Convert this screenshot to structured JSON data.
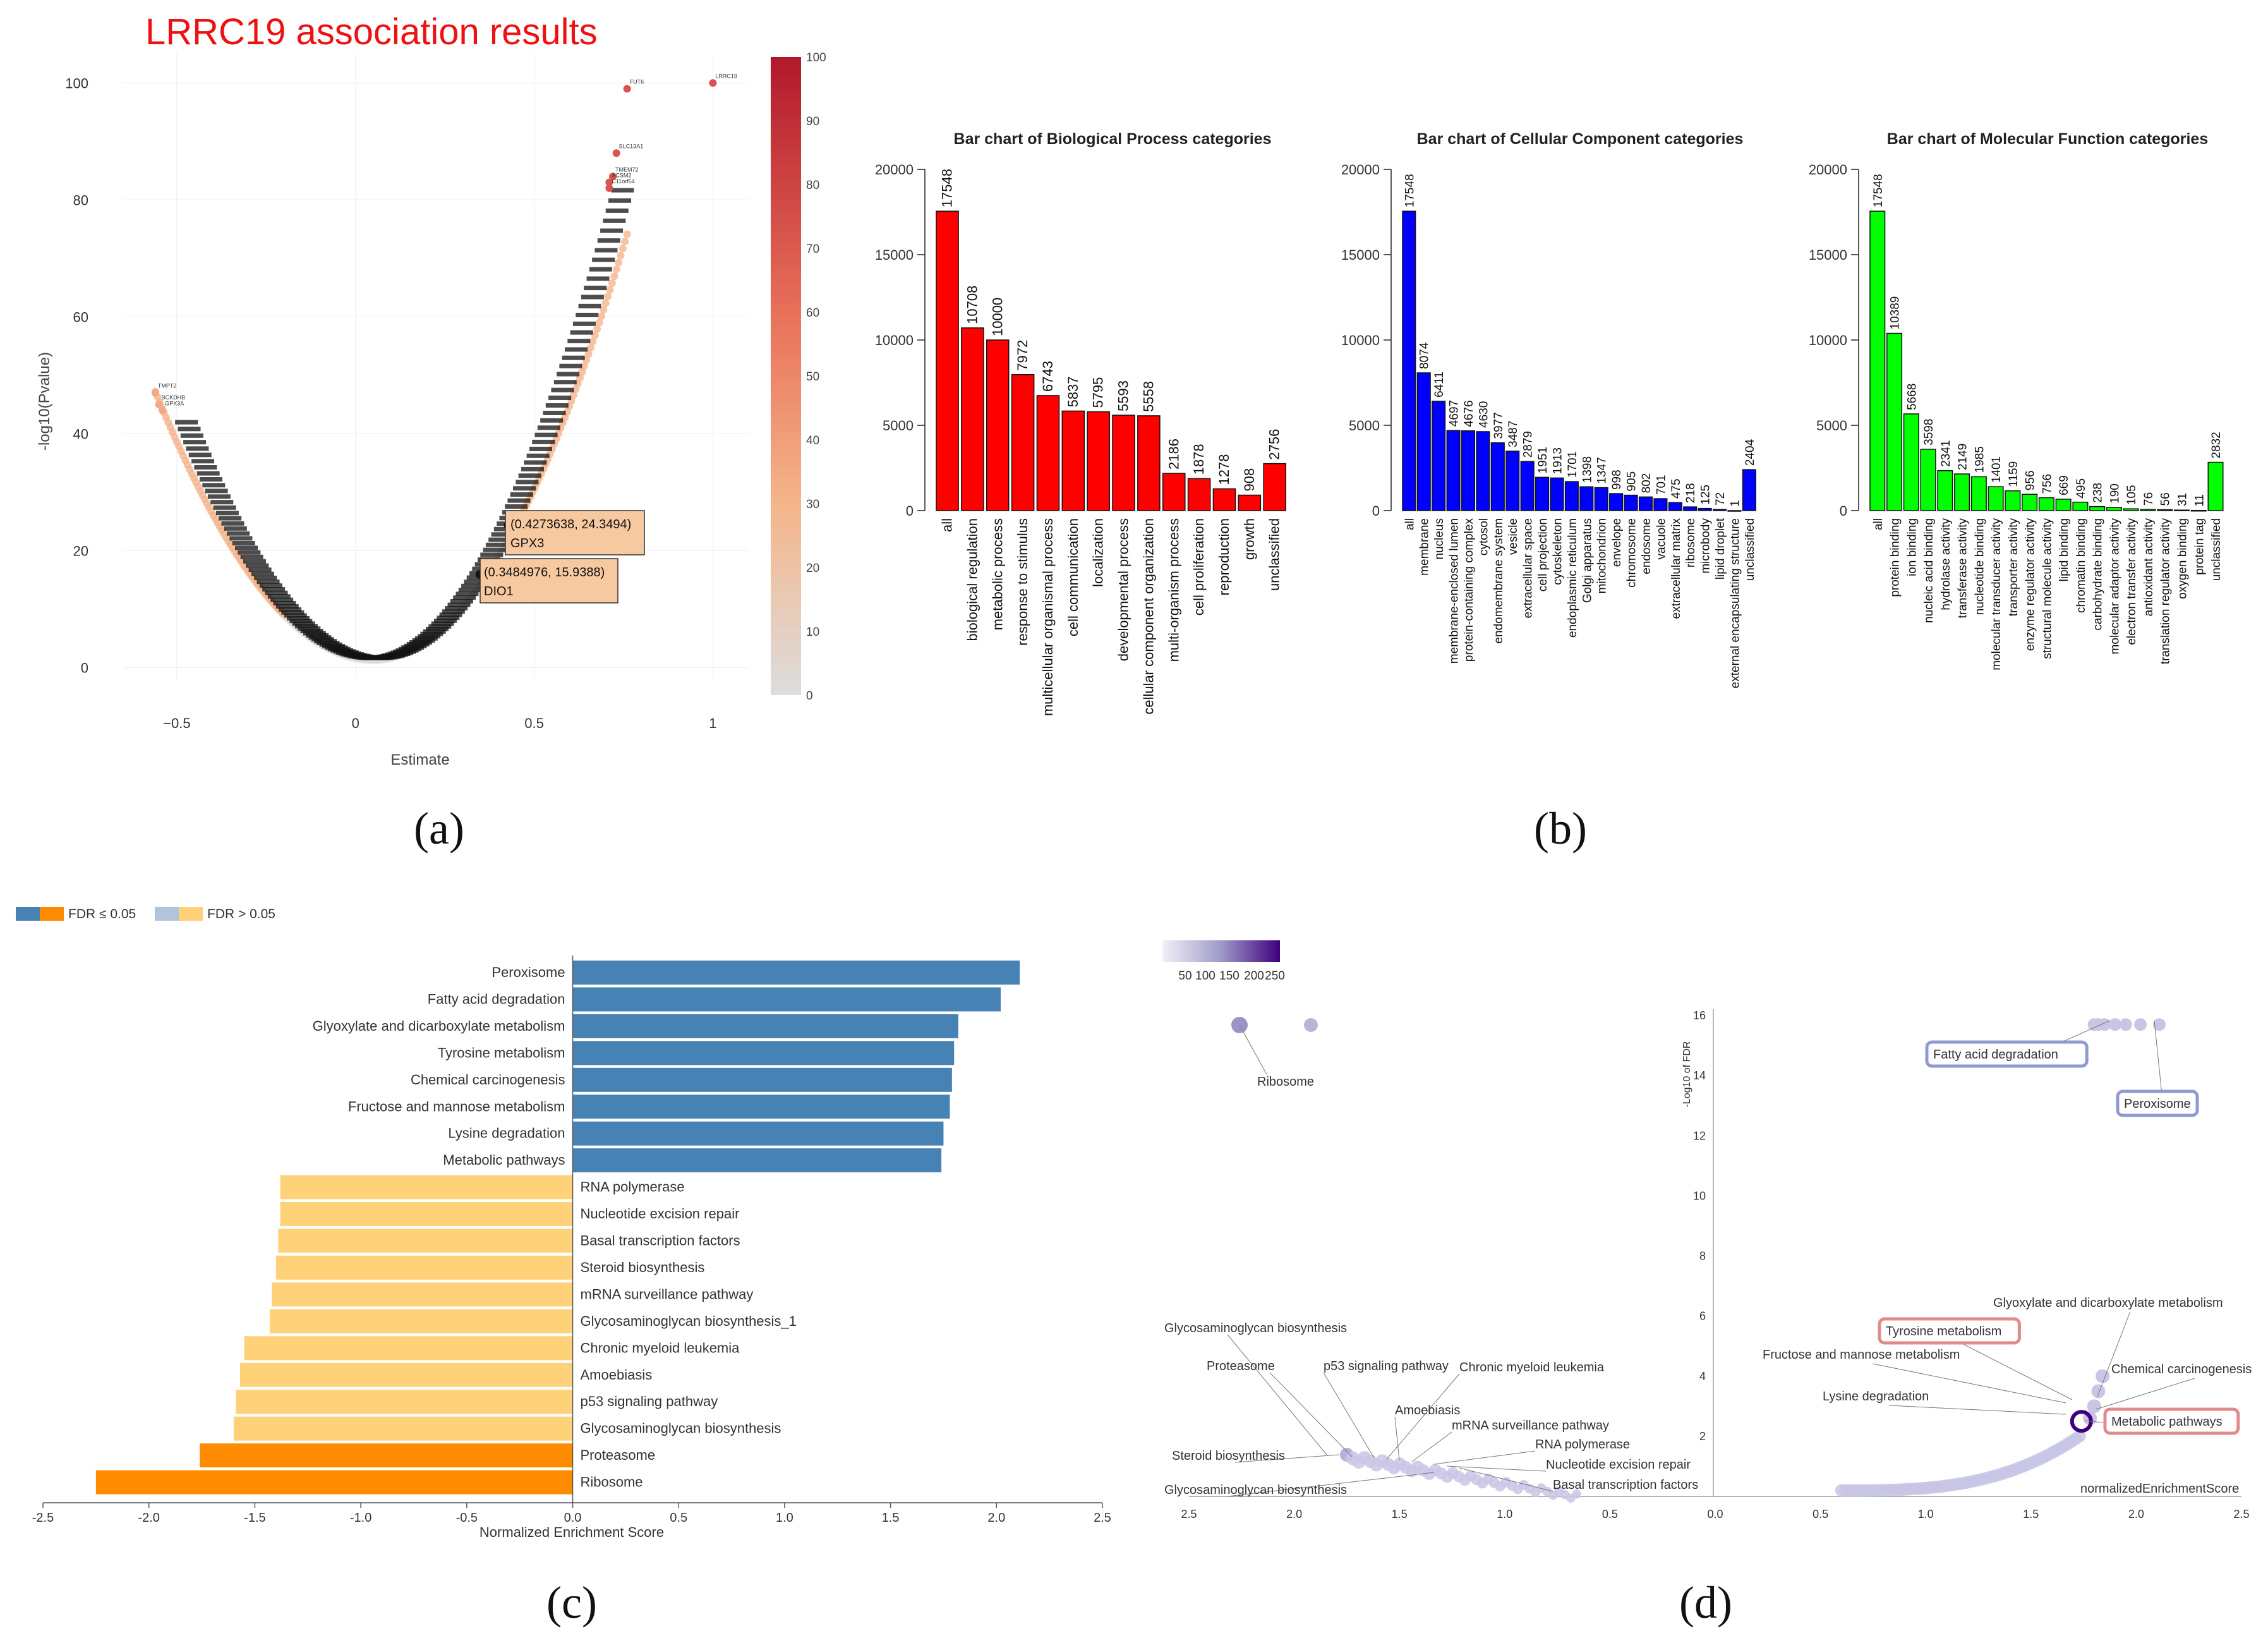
{
  "panel_labels": {
    "a": "(a)",
    "b": "(b)",
    "c": "(c)",
    "d": "(d)"
  },
  "colors": {
    "bp": "#ff0000",
    "cc": "#0000ff",
    "mf": "#00ff00",
    "fdr_sig_pos": "#4682b4",
    "fdr_sig_neg": "#ff8c00",
    "fdr_ns_pos": "#b0c4de",
    "fdr_ns_neg": "#ffd27a",
    "volcano_title": "#ee1111"
  },
  "chart_data": [
    {
      "id": "a",
      "type": "scatter",
      "title": "LRRC19 association  results",
      "xlabel": "Estimate",
      "ylabel": "-log10(Pvalue)",
      "xlim": [
        -0.65,
        1.1
      ],
      "ylim": [
        -2,
        105
      ],
      "xticks": [
        {
          "v": -0.5,
          "l": "−0.5"
        },
        {
          "v": 0,
          "l": "0"
        },
        {
          "v": 0.5,
          "l": "0.5"
        },
        {
          "v": 1,
          "l": "1"
        }
      ],
      "yticks": [
        0,
        20,
        40,
        60,
        80,
        100
      ],
      "colorbar": {
        "min": 0,
        "max": 100,
        "ticks": [
          0,
          10,
          20,
          30,
          40,
          50,
          60,
          70,
          80,
          90,
          100
        ]
      },
      "labeled_points": [
        {
          "x": 1.0,
          "y": 100,
          "label": "LRRC19"
        },
        {
          "x": 0.76,
          "y": 99,
          "label": "FUT6"
        },
        {
          "x": 0.73,
          "y": 88,
          "label": "SLC13A1"
        },
        {
          "x": 0.72,
          "y": 84,
          "label": "TMEM72"
        },
        {
          "x": 0.71,
          "y": 83,
          "label": "ACSM2"
        },
        {
          "x": 0.71,
          "y": 82,
          "label": "C11orf54"
        },
        {
          "x": -0.56,
          "y": 47,
          "label": "TMPT2"
        },
        {
          "x": -0.55,
          "y": 45,
          "label": "BCKDHB"
        },
        {
          "x": -0.54,
          "y": 44,
          "label": "GPX3A"
        }
      ],
      "callouts": [
        {
          "x": 0.4273638,
          "y": 24.3494,
          "coords": "(0.4273638, 24.3494)",
          "gene": "GPX3"
        },
        {
          "x": 0.3484976,
          "y": 15.9388,
          "coords": "(0.3484976, 15.9388)",
          "gene": "DIO1"
        }
      ]
    },
    {
      "id": "b1",
      "type": "bar",
      "title": "Bar chart of Biological Process categories",
      "ylim": [
        0,
        20000
      ],
      "yticks": [
        0,
        5000,
        10000,
        15000,
        20000
      ],
      "categories": [
        "all",
        "biological regulation",
        "metabolic process",
        "response to stimulus",
        "multicellular organismal process",
        "cell communication",
        "localization",
        "developmental process",
        "cellular component organization",
        "multi-organism process",
        "cell proliferation",
        "reproduction",
        "growth",
        "unclassified"
      ],
      "values": [
        17548,
        10708,
        10000,
        7972,
        6743,
        5837,
        5795,
        5593,
        5558,
        2186,
        1878,
        1278,
        908,
        2756
      ]
    },
    {
      "id": "b2",
      "type": "bar",
      "title": "Bar chart of Cellular Component categories",
      "ylim": [
        0,
        20000
      ],
      "yticks": [
        0,
        5000,
        10000,
        15000,
        20000
      ],
      "categories": [
        "all",
        "membrane",
        "nucleus",
        "membrane-enclosed lumen",
        "protein-containing complex",
        "cytosol",
        "endomembrane system",
        "vesicle",
        "extracellular space",
        "cell projection",
        "cytoskeleton",
        "endoplasmic reticulum",
        "Golgi apparatus",
        "mitochondrion",
        "envelope",
        "chromosome",
        "endosome",
        "vacuole",
        "extracellular matrix",
        "ribosome",
        "microbody",
        "lipid droplet",
        "external encapsulating structure",
        "unclassified"
      ],
      "values": [
        17548,
        8074,
        6411,
        4697,
        4676,
        4630,
        3977,
        3487,
        2879,
        1951,
        1913,
        1701,
        1398,
        1347,
        998,
        905,
        802,
        701,
        475,
        218,
        125,
        72,
        1,
        2404
      ]
    },
    {
      "id": "b3",
      "type": "bar",
      "title": "Bar chart of Molecular Function categories",
      "ylim": [
        0,
        20000
      ],
      "yticks": [
        0,
        5000,
        10000,
        15000,
        20000
      ],
      "categories": [
        "all",
        "protein binding",
        "ion binding",
        "nucleic acid binding",
        "hydrolase activity",
        "transferase activity",
        "nucleotide binding",
        "molecular transducer activity",
        "transporter activity",
        "enzyme regulator activity",
        "structural molecule activity",
        "lipid binding",
        "chromatin binding",
        "carbohydrate binding",
        "molecular adaptor activity",
        "electron transfer activity",
        "antioxidant activity",
        "translation regulator activity",
        "oxygen binding",
        "protein tag",
        "unclassified"
      ],
      "values": [
        17548,
        10389,
        5668,
        3598,
        2341,
        2149,
        1985,
        1401,
        1159,
        956,
        756,
        669,
        495,
        238,
        190,
        105,
        76,
        56,
        31,
        11,
        2832
      ]
    },
    {
      "id": "c",
      "type": "bar",
      "orientation": "horizontal",
      "xlabel": "Normalized Enrichment Score",
      "xlim": [
        -2.5,
        2.5
      ],
      "xticks": [
        {
          "v": -2.5,
          "l": "-2.5"
        },
        {
          "v": -2.0,
          "l": "-2.0"
        },
        {
          "v": -1.5,
          "l": "-1.5"
        },
        {
          "v": -1.0,
          "l": "-1.0"
        },
        {
          "v": -0.5,
          "l": "-0.5"
        },
        {
          "v": 0,
          "l": "0.0"
        },
        {
          "v": 0.5,
          "l": "0.5"
        },
        {
          "v": 1.0,
          "l": "1.0"
        },
        {
          "v": 1.5,
          "l": "1.5"
        },
        {
          "v": 2.0,
          "l": "2.0"
        },
        {
          "v": 2.5,
          "l": "2.5"
        }
      ],
      "legend": [
        {
          "label": "FDR ≤ 0.05",
          "colors": [
            "#4682b4",
            "#ff8c00"
          ]
        },
        {
          "label": "FDR > 0.05",
          "colors": [
            "#b0c4de",
            "#ffd27a"
          ]
        }
      ],
      "categories": [
        "Peroxisome",
        "Fatty acid degradation",
        "Glyoxylate and dicarboxylate metabolism",
        "Tyrosine metabolism",
        "Chemical carcinogenesis",
        "Fructose and mannose metabolism",
        "Lysine degradation",
        "Metabolic pathways",
        "RNA polymerase",
        "Nucleotide excision repair",
        "Basal transcription factors",
        "Steroid biosynthesis",
        "mRNA surveillance pathway",
        "Glycosaminoglycan biosynthesis_1",
        "Chronic myeloid leukemia",
        "Amoebiasis",
        "p53 signaling pathway",
        "Glycosaminoglycan biosynthesis",
        "Proteasome",
        "Ribosome"
      ],
      "values": [
        2.11,
        2.02,
        1.82,
        1.8,
        1.79,
        1.78,
        1.75,
        1.74,
        -1.38,
        -1.38,
        -1.39,
        -1.4,
        -1.42,
        -1.43,
        -1.55,
        -1.57,
        -1.59,
        -1.6,
        -1.76,
        -2.25
      ],
      "significant": [
        true,
        true,
        true,
        true,
        true,
        true,
        true,
        true,
        false,
        false,
        false,
        false,
        false,
        false,
        false,
        false,
        false,
        false,
        true,
        true
      ]
    },
    {
      "id": "d",
      "type": "scatter",
      "xlabel": "normalizedEnrichmentScore",
      "ylabel": "-Log10 of FDR",
      "x_ticks_left": [
        {
          "v": 2.5,
          "l": "2.5"
        },
        {
          "v": 2.0,
          "l": "2.0"
        },
        {
          "v": 1.5,
          "l": "1.5"
        },
        {
          "v": 1.0,
          "l": "1.0"
        },
        {
          "v": 0.5,
          "l": "0.5"
        },
        {
          "v": 0,
          "l": "0.0"
        }
      ],
      "x_ticks_right": [
        {
          "v": 0.5,
          "l": "0.5"
        },
        {
          "v": 1.0,
          "l": "1.0"
        },
        {
          "v": 1.5,
          "l": "1.5"
        },
        {
          "v": 2.0,
          "l": "2.0"
        },
        {
          "v": 2.5,
          "l": "2.5"
        }
      ],
      "yticks": [
        2,
        4,
        6,
        8,
        10,
        12,
        14,
        16
      ],
      "ylim": [
        0,
        16
      ],
      "colorbar": {
        "ticks": [
          "50",
          "100",
          "150",
          "200",
          "250"
        ]
      },
      "neg_labels": [
        "Ribosome",
        "Glycosaminoglycan biosynthesis",
        "Proteasome",
        "p53 signaling pathway",
        "Chronic myeloid leukemia",
        "Amoebiasis",
        "mRNA surveillance pathway",
        "RNA polymerase",
        "Steroid biosynthesis",
        "Nucleotide excision repair",
        "Basal transcription factors",
        "Glycosaminoglycan biosynthesis"
      ],
      "pos_labels": [
        "Fatty acid degradation",
        "Peroxisome",
        "Glyoxylate and dicarboxylate metabolism",
        "Tyrosine metabolism",
        "Fructose and mannose metabolism",
        "Chemical carcinogenesis",
        "Lysine degradation",
        "Metabolic pathways"
      ],
      "boxed": [
        "Fatty acid degradation",
        "Peroxisome",
        "Tyrosine metabolism",
        "Metabolic pathways"
      ]
    }
  ]
}
